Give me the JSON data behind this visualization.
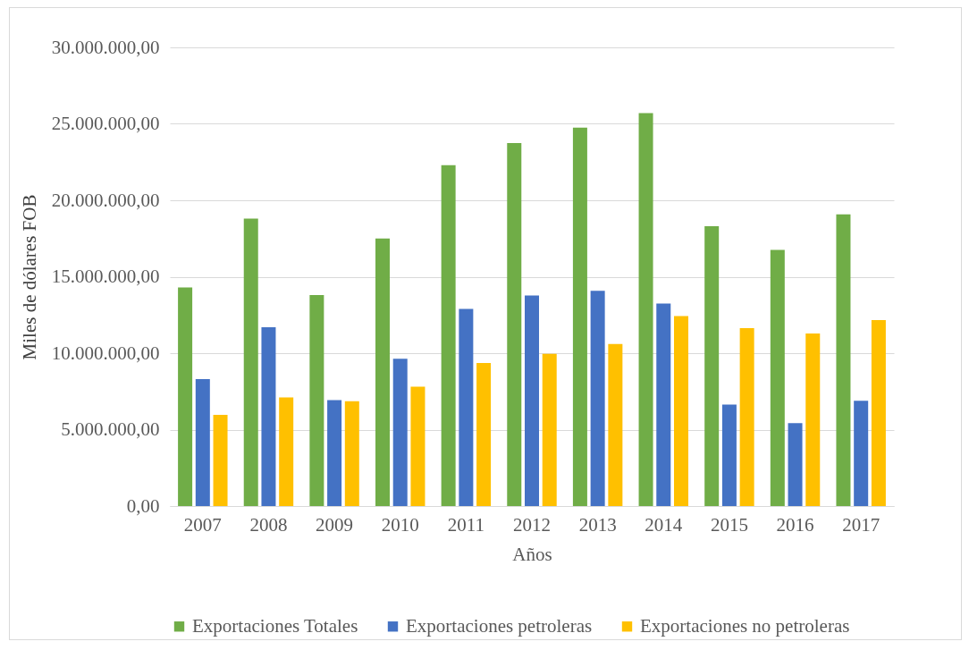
{
  "chart_data": {
    "type": "bar",
    "xlabel": "Años",
    "ylabel": "Miles de dólares FOB",
    "categories": [
      "2007",
      "2008",
      "2009",
      "2010",
      "2011",
      "2012",
      "2013",
      "2014",
      "2015",
      "2016",
      "2017"
    ],
    "series": [
      {
        "name": "Exportaciones Totales",
        "color": "#70ad47",
        "values": [
          14300000,
          18800000,
          13800000,
          17500000,
          22300000,
          23750000,
          24750000,
          25700000,
          18300000,
          16760000,
          19080000
        ]
      },
      {
        "name": "Exportaciones petroleras",
        "color": "#4472c4",
        "values": [
          8300000,
          11700000,
          6930000,
          9630000,
          12900000,
          13770000,
          14080000,
          13240000,
          6640000,
          5430000,
          6880000
        ]
      },
      {
        "name": "Exportaciones no petroleras",
        "color": "#ffc000",
        "values": [
          5960000,
          7100000,
          6860000,
          7810000,
          9360000,
          9960000,
          10600000,
          12420000,
          11640000,
          11290000,
          12170000
        ]
      }
    ],
    "ylim": [
      0,
      30000000
    ],
    "yticks": [
      {
        "value": 0,
        "label": "0,00"
      },
      {
        "value": 5000000,
        "label": "5.000.000,00"
      },
      {
        "value": 10000000,
        "label": "10.000.000,00"
      },
      {
        "value": 15000000,
        "label": "15.000.000,00"
      },
      {
        "value": 20000000,
        "label": "20.000.000,00"
      },
      {
        "value": 25000000,
        "label": "25.000.000,00"
      },
      {
        "value": 30000000,
        "label": "30.000.000,00"
      }
    ],
    "grid": "y",
    "legend": "bottom"
  }
}
